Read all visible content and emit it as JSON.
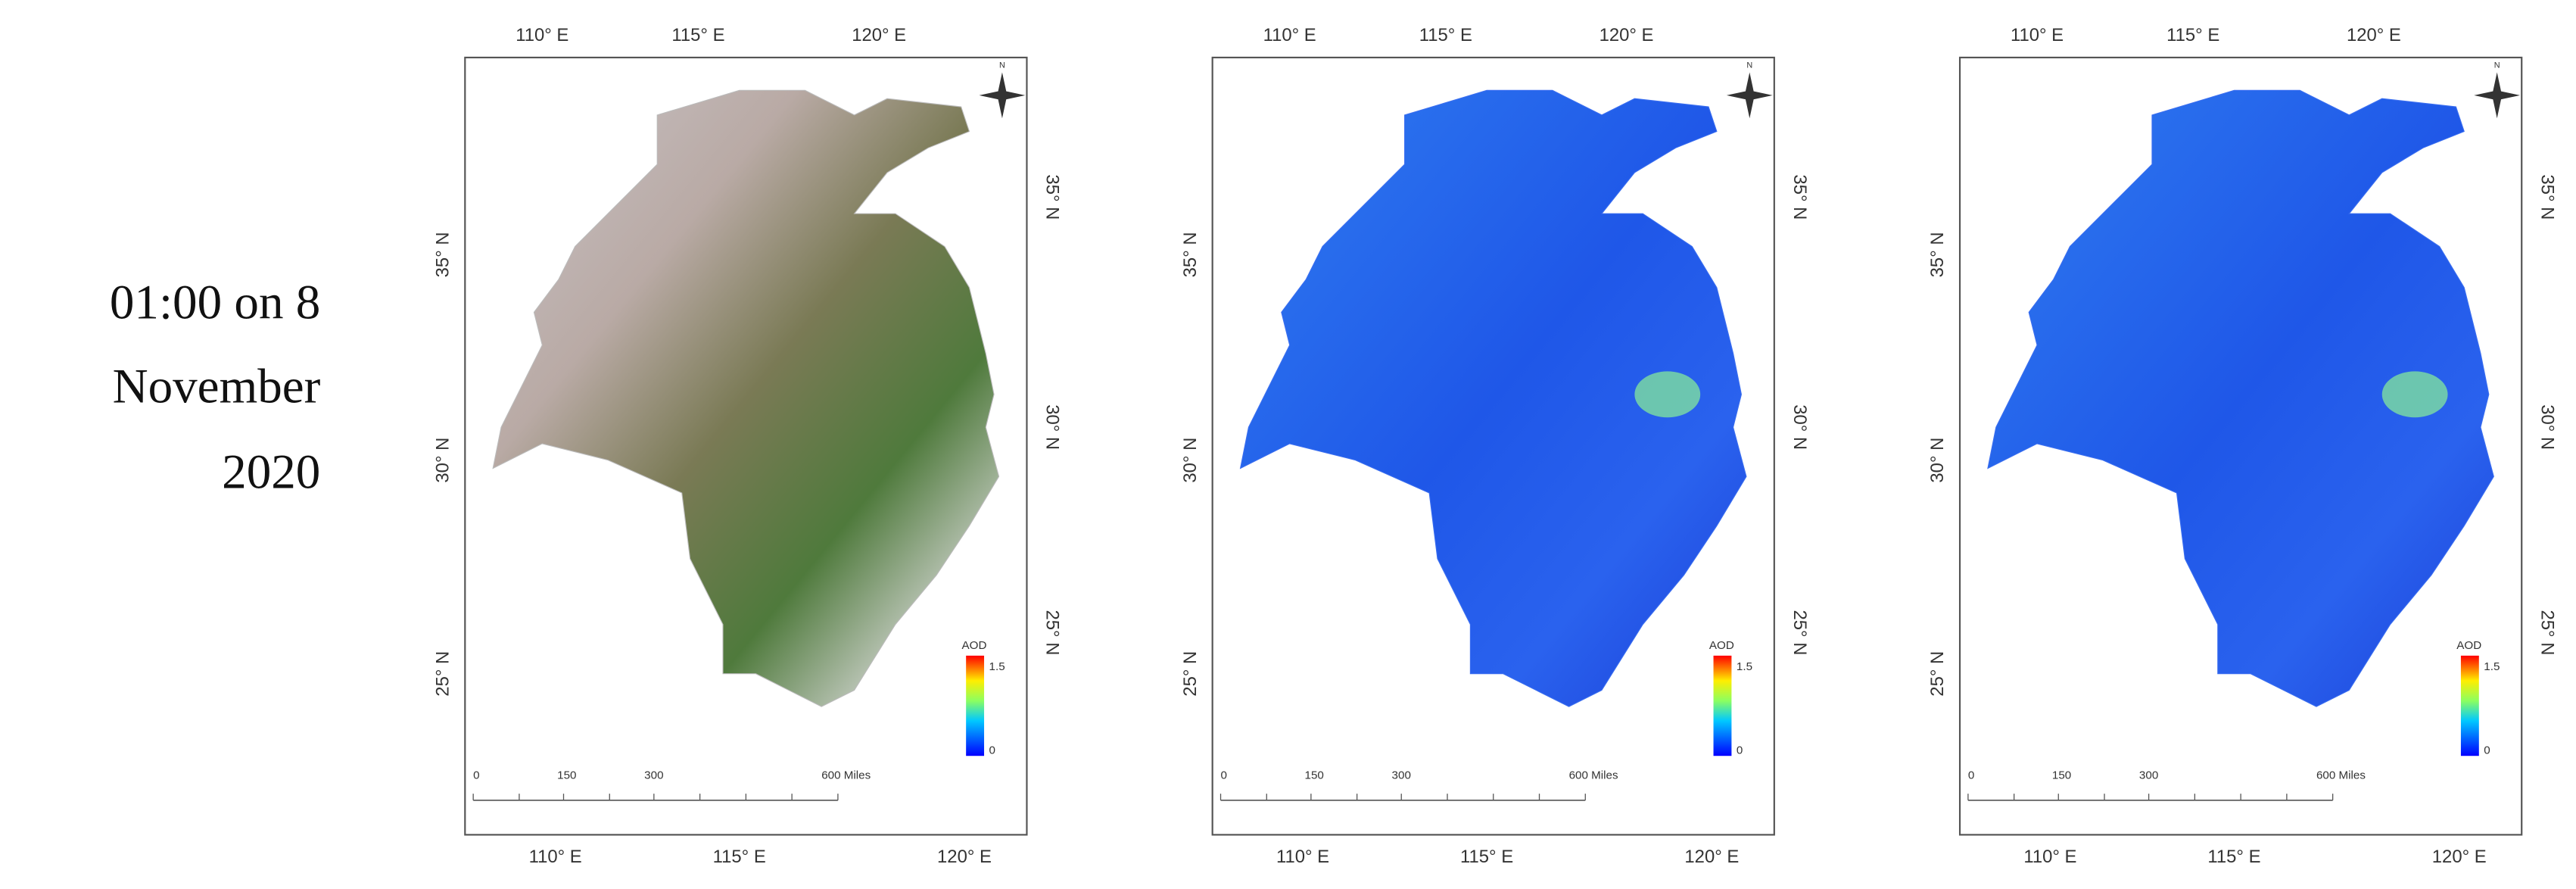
{
  "caption": [
    "01:00 on 8",
    "November",
    "2020"
  ],
  "panels": [
    {
      "top_labels": [
        "110° E",
        "115° E",
        "120° E"
      ],
      "bottom_labels": [
        "110° E",
        "115° E",
        "120° E"
      ],
      "left_labels": [
        "35° N",
        "30° N",
        "25° N"
      ],
      "right_labels": [
        "35° N",
        "30° N",
        "25° N"
      ],
      "scale_labels": [
        "0",
        "150",
        "300",
        "600 Miles"
      ],
      "legend": {
        "title": "AOD",
        "max": "1.5",
        "min": "0"
      },
      "north": "N"
    },
    {
      "top_labels": [
        "110° E",
        "115° E",
        "120° E"
      ],
      "bottom_labels": [
        "110° E",
        "115° E",
        "120° E"
      ],
      "left_labels": [
        "35° N",
        "30° N",
        "25° N"
      ],
      "right_labels": [
        "35° N",
        "30° N",
        "25° N"
      ],
      "scale_labels": [
        "0",
        "150",
        "300",
        "600 Miles"
      ],
      "legend": {
        "title": "AOD",
        "max": "1.5",
        "min": "0"
      },
      "north": "N"
    },
    {
      "top_labels": [
        "110° E",
        "115° E",
        "120° E"
      ],
      "bottom_labels": [
        "110° E",
        "115° E",
        "120° E"
      ],
      "left_labels": [
        "35° N",
        "30° N",
        "25° N"
      ],
      "right_labels": [
        "35° N",
        "30° N",
        "25° N"
      ],
      "scale_labels": [
        "0",
        "150",
        "300",
        "600 Miles"
      ],
      "legend": {
        "title": "AOD",
        "max": "1.5",
        "min": "0"
      },
      "north": "N"
    }
  ]
}
